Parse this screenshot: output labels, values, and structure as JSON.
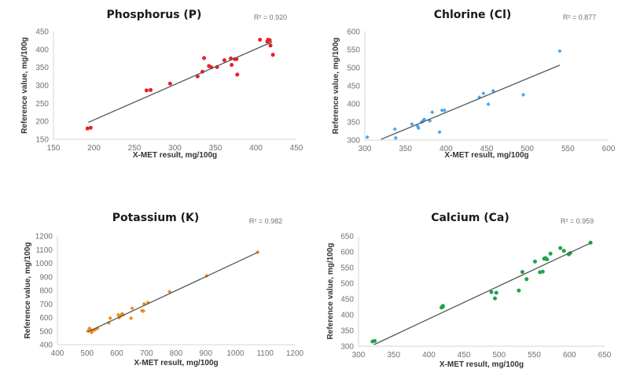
{
  "chart_data": [
    {
      "id": "phosphorus",
      "type": "scatter",
      "title": "Phosphorus (P)",
      "r_squared_label": "R² = 0.920",
      "xlabel": "X-MET result, mg/100g",
      "ylabel": "Reference value, mg/100g",
      "xlim": [
        150,
        450
      ],
      "ylim": [
        150,
        450
      ],
      "xticks": [
        150,
        200,
        250,
        300,
        350,
        400,
        450
      ],
      "yticks": [
        150,
        200,
        250,
        300,
        350,
        400,
        450
      ],
      "marker_color": "#e8202a",
      "marker_shape": "circle",
      "grid": false,
      "trendline": {
        "x": [
          193,
          420
        ],
        "y": [
          197,
          421
        ]
      },
      "points": [
        [
          192,
          180
        ],
        [
          196,
          182
        ],
        [
          265,
          286
        ],
        [
          270,
          287
        ],
        [
          294,
          305
        ],
        [
          328,
          325
        ],
        [
          334,
          338
        ],
        [
          336,
          376
        ],
        [
          342,
          354
        ],
        [
          345,
          350
        ],
        [
          352,
          351
        ],
        [
          361,
          370
        ],
        [
          369,
          375
        ],
        [
          370,
          357
        ],
        [
          374,
          373
        ],
        [
          376,
          373
        ],
        [
          377,
          330
        ],
        [
          405,
          427
        ],
        [
          414,
          422
        ],
        [
          415,
          427
        ],
        [
          417,
          426
        ],
        [
          418,
          411
        ],
        [
          421,
          385
        ]
      ]
    },
    {
      "id": "chlorine",
      "type": "scatter",
      "title": "Chlorine (Cl)",
      "r_squared_label": "R² = 0.877",
      "xlabel": "X-MET result, mg/100g",
      "ylabel": "Reference value, mg/100g",
      "xlim": [
        300,
        600
      ],
      "ylim": [
        300,
        600
      ],
      "xticks": [
        300,
        350,
        400,
        450,
        500,
        550,
        600
      ],
      "yticks": [
        300,
        350,
        400,
        450,
        500,
        550,
        600
      ],
      "marker_color": "#4da3e8",
      "marker_shape": "diamond",
      "grid": false,
      "trendline": {
        "x": [
          320,
          540
        ],
        "y": [
          302,
          507
        ]
      },
      "points": [
        [
          303,
          308
        ],
        [
          337,
          330
        ],
        [
          338,
          306
        ],
        [
          358,
          344
        ],
        [
          365,
          338
        ],
        [
          366,
          333
        ],
        [
          370,
          350
        ],
        [
          372,
          353
        ],
        [
          373,
          357
        ],
        [
          380,
          353
        ],
        [
          383,
          377
        ],
        [
          392,
          322
        ],
        [
          395,
          382
        ],
        [
          398,
          382
        ],
        [
          441,
          418
        ],
        [
          446,
          429
        ],
        [
          452,
          399
        ],
        [
          458,
          436
        ],
        [
          495,
          425
        ],
        [
          540,
          546
        ]
      ]
    },
    {
      "id": "potassium",
      "type": "scatter",
      "title": "Potassium (K)",
      "r_squared_label": "R² = 0.982",
      "xlabel": "X-MET result, mg/100g",
      "ylabel": "Reference value, mg/100g",
      "xlim": [
        400,
        1200
      ],
      "ylim": [
        400,
        1200
      ],
      "xticks": [
        400,
        500,
        600,
        700,
        800,
        900,
        1000,
        1100,
        1200
      ],
      "yticks": [
        400,
        500,
        600,
        700,
        800,
        900,
        1000,
        1100,
        1200
      ],
      "marker_color": "#f08a14",
      "marker_shape": "diamond",
      "grid": false,
      "trendline": {
        "x": [
          503,
          1075
        ],
        "y": [
          495,
          1080
        ]
      },
      "points": [
        [
          503,
          500
        ],
        [
          508,
          520
        ],
        [
          512,
          510
        ],
        [
          515,
          490
        ],
        [
          520,
          505
        ],
        [
          527,
          510
        ],
        [
          535,
          520
        ],
        [
          573,
          560
        ],
        [
          578,
          595
        ],
        [
          605,
          620
        ],
        [
          608,
          600
        ],
        [
          612,
          610
        ],
        [
          618,
          628
        ],
        [
          622,
          620
        ],
        [
          648,
          595
        ],
        [
          652,
          668
        ],
        [
          685,
          650
        ],
        [
          690,
          648
        ],
        [
          692,
          700
        ],
        [
          705,
          710
        ],
        [
          778,
          790
        ],
        [
          903,
          907
        ],
        [
          1075,
          1082
        ]
      ]
    },
    {
      "id": "calcium",
      "type": "scatter",
      "title": "Calcium (Ca)",
      "r_squared_label": "R² = 0.959",
      "xlabel": "X-MET result, mg/100g",
      "ylabel": "Reference value, mg/100g",
      "xlim": [
        300,
        650
      ],
      "ylim": [
        300,
        650
      ],
      "xticks": [
        300,
        350,
        400,
        450,
        500,
        550,
        600,
        650
      ],
      "yticks": [
        300,
        350,
        400,
        450,
        500,
        550,
        600,
        650
      ],
      "marker_color": "#1fa34a",
      "marker_shape": "circle",
      "grid": false,
      "trendline": {
        "x": [
          322,
          630
        ],
        "y": [
          305,
          628
        ]
      },
      "points": [
        [
          320,
          315
        ],
        [
          323,
          317
        ],
        [
          418,
          423
        ],
        [
          420,
          428
        ],
        [
          420,
          426
        ],
        [
          489,
          472
        ],
        [
          494,
          452
        ],
        [
          496,
          470
        ],
        [
          528,
          477
        ],
        [
          533,
          536
        ],
        [
          539,
          513
        ],
        [
          551,
          569
        ],
        [
          558,
          535
        ],
        [
          562,
          537
        ],
        [
          564,
          578
        ],
        [
          566,
          580
        ],
        [
          568,
          576
        ],
        [
          573,
          594
        ],
        [
          587,
          612
        ],
        [
          592,
          603
        ],
        [
          599,
          592
        ],
        [
          601,
          596
        ],
        [
          630,
          629
        ]
      ]
    }
  ]
}
